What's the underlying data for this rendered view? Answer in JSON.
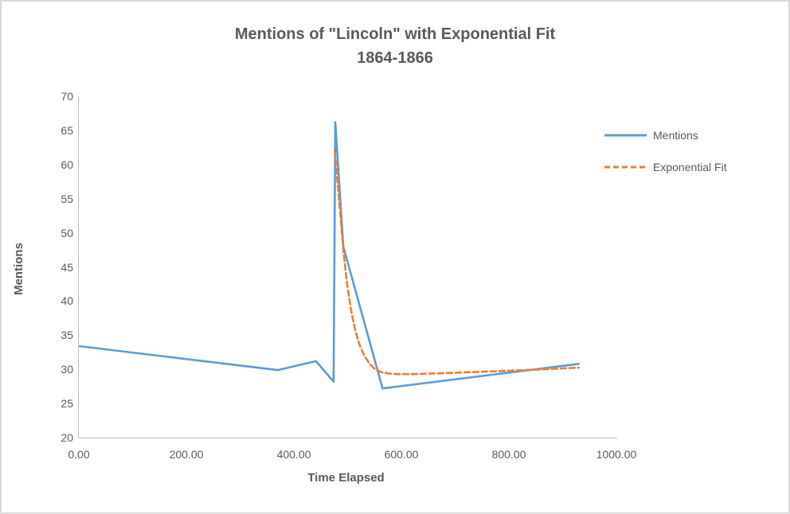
{
  "title": {
    "line1": "Mentions of \"Lincoln\" with Exponential Fit",
    "line2": "1864-1866"
  },
  "colors": {
    "mentions_line": "#5B9BD5",
    "fit_line": "#ED7D31",
    "axis_line": "#BFBFBF",
    "text": "#595959"
  },
  "legend": {
    "items": [
      {
        "label": "Mentions",
        "style": "solid"
      },
      {
        "label": "Exponential Fit",
        "style": "dashed"
      }
    ]
  },
  "chart_data": {
    "type": "line",
    "title": "Mentions of \"Lincoln\" with Exponential Fit 1864-1866",
    "xlabel": "Time Elapsed",
    "ylabel": "Mentions",
    "xlim": [
      0,
      1000
    ],
    "ylim": [
      20,
      70
    ],
    "grid": false,
    "legend_position": "right",
    "x_ticks": [
      {
        "value": 0,
        "label": "0.00"
      },
      {
        "value": 200,
        "label": "200.00"
      },
      {
        "value": 400,
        "label": "400.00"
      },
      {
        "value": 600,
        "label": "600.00"
      },
      {
        "value": 800,
        "label": "800.00"
      },
      {
        "value": 1000,
        "label": "1000.00"
      }
    ],
    "y_ticks": [
      {
        "value": 20,
        "label": "20"
      },
      {
        "value": 25,
        "label": "25"
      },
      {
        "value": 30,
        "label": "30"
      },
      {
        "value": 35,
        "label": "35"
      },
      {
        "value": 40,
        "label": "40"
      },
      {
        "value": 45,
        "label": "45"
      },
      {
        "value": 50,
        "label": "50"
      },
      {
        "value": 55,
        "label": "55"
      },
      {
        "value": 60,
        "label": "60"
      },
      {
        "value": 65,
        "label": "65"
      },
      {
        "value": 70,
        "label": "70"
      }
    ],
    "series": [
      {
        "name": "Mentions",
        "color": "#5B9BD5",
        "style": "solid",
        "points": [
          [
            0,
            33.4
          ],
          [
            370,
            29.9
          ],
          [
            441,
            31.2
          ],
          [
            474,
            28.2
          ],
          [
            477,
            66.2
          ],
          [
            492,
            48.0
          ],
          [
            565,
            27.2
          ],
          [
            930,
            30.8
          ]
        ]
      },
      {
        "name": "Exponential Fit",
        "color": "#ED7D31",
        "style": "dashed",
        "points": [
          [
            476,
            62.0
          ],
          [
            485,
            54.0
          ],
          [
            492,
            47.5
          ],
          [
            499,
            42.5
          ],
          [
            506,
            38.8
          ],
          [
            514,
            35.8
          ],
          [
            522,
            33.6
          ],
          [
            531,
            32.0
          ],
          [
            541,
            30.8
          ],
          [
            551,
            30.0
          ],
          [
            562,
            29.6
          ],
          [
            575,
            29.4
          ],
          [
            590,
            29.3
          ],
          [
            620,
            29.3
          ],
          [
            660,
            29.4
          ],
          [
            700,
            29.5
          ],
          [
            750,
            29.65
          ],
          [
            800,
            29.8
          ],
          [
            850,
            29.95
          ],
          [
            890,
            30.1
          ],
          [
            930,
            30.25
          ]
        ]
      }
    ]
  }
}
